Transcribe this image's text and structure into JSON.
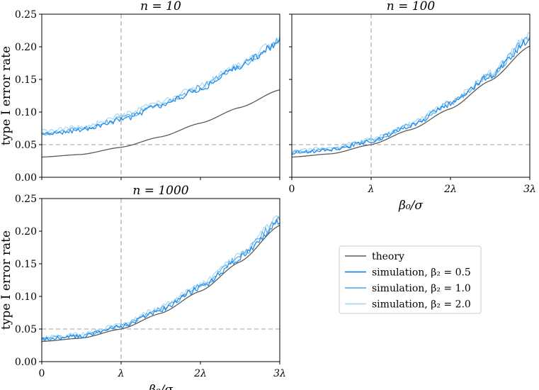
{
  "chart_data": {
    "type": "line",
    "ylabel": "type I error rate",
    "xlabel": "β₀/σ",
    "yticks": [
      "0.00",
      "0.05",
      "0.10",
      "0.15",
      "0.20",
      "0.25"
    ],
    "ylim": [
      0,
      0.25
    ],
    "xlim": [
      0,
      3
    ],
    "xtick_values": [
      0,
      1,
      2,
      3
    ],
    "xticks": [
      "0",
      "λ",
      "2λ",
      "3λ"
    ],
    "reference_lines": {
      "x": 1,
      "y": 0.05
    },
    "colors": {
      "theory": "#5a5a5a",
      "sim_0_5": "#1e88e5",
      "sim_1_0": "#5bb0ee",
      "sim_2_0": "#a9d8f5",
      "reference": "#a0a0a0"
    },
    "legend": {
      "position": "lower-right",
      "entries": [
        "theory",
        "simulation, β₂ = 0.5",
        "simulation, β₂ = 1.0",
        "simulation, β₂ = 2.0"
      ]
    },
    "panels": [
      {
        "title": "n = 10",
        "show_xticklabels": false,
        "show_ylabel": true,
        "series": [
          {
            "key": "theory",
            "name": "theory",
            "x": [
              0,
              0.5,
              1,
              1.5,
              2,
              2.5,
              3
            ],
            "y": [
              0.031,
              0.035,
              0.046,
              0.062,
              0.083,
              0.107,
              0.134
            ]
          },
          {
            "key": "sim_0_5",
            "name": "simulation, β₂ = 0.5",
            "x": [
              0,
              0.5,
              1,
              1.5,
              2,
              2.5,
              3
            ],
            "y": [
              0.065,
              0.073,
              0.088,
              0.11,
              0.136,
              0.171,
              0.207
            ]
          },
          {
            "key": "sim_1_0",
            "name": "simulation, β₂ = 1.0",
            "x": [
              0,
              0.5,
              1,
              1.5,
              2,
              2.5,
              3
            ],
            "y": [
              0.066,
              0.074,
              0.09,
              0.112,
              0.138,
              0.172,
              0.209
            ]
          },
          {
            "key": "sim_2_0",
            "name": "simulation, β₂ = 2.0",
            "x": [
              0,
              0.5,
              1,
              1.5,
              2,
              2.5,
              3
            ],
            "y": [
              0.07,
              0.077,
              0.094,
              0.115,
              0.14,
              0.174,
              0.211
            ]
          }
        ]
      },
      {
        "title": "n = 100",
        "show_xticklabels": true,
        "show_ylabel": false,
        "series": [
          {
            "key": "theory",
            "name": "theory",
            "x": [
              0,
              0.5,
              1,
              1.5,
              2,
              2.5,
              3
            ],
            "y": [
              0.031,
              0.036,
              0.05,
              0.073,
              0.105,
              0.148,
              0.201
            ]
          },
          {
            "key": "sim_0_5",
            "name": "simulation, β₂ = 0.5",
            "x": [
              0,
              0.5,
              1,
              1.5,
              2,
              2.5,
              3
            ],
            "y": [
              0.037,
              0.042,
              0.055,
              0.079,
              0.112,
              0.155,
              0.212
            ]
          },
          {
            "key": "sim_1_0",
            "name": "simulation, β₂ = 1.0",
            "x": [
              0,
              0.5,
              1,
              1.5,
              2,
              2.5,
              3
            ],
            "y": [
              0.038,
              0.043,
              0.056,
              0.08,
              0.114,
              0.157,
              0.215
            ]
          },
          {
            "key": "sim_2_0",
            "name": "simulation, β₂ = 2.0",
            "x": [
              0,
              0.5,
              1,
              1.5,
              2,
              2.5,
              3
            ],
            "y": [
              0.04,
              0.045,
              0.058,
              0.082,
              0.116,
              0.16,
              0.219
            ]
          }
        ]
      },
      {
        "title": "n = 1000",
        "show_xticklabels": true,
        "show_ylabel": true,
        "series": [
          {
            "key": "theory",
            "name": "theory",
            "x": [
              0,
              0.5,
              1,
              1.5,
              2,
              2.5,
              3
            ],
            "y": [
              0.031,
              0.036,
              0.05,
              0.074,
              0.108,
              0.153,
              0.209
            ]
          },
          {
            "key": "sim_0_5",
            "name": "simulation, β₂ = 0.5",
            "x": [
              0,
              0.5,
              1,
              1.5,
              2,
              2.5,
              3
            ],
            "y": [
              0.034,
              0.039,
              0.054,
              0.079,
              0.114,
              0.158,
              0.216
            ]
          },
          {
            "key": "sim_1_0",
            "name": "simulation, β₂ = 1.0",
            "x": [
              0,
              0.5,
              1,
              1.5,
              2,
              2.5,
              3
            ],
            "y": [
              0.035,
              0.04,
              0.055,
              0.08,
              0.116,
              0.161,
              0.219
            ]
          },
          {
            "key": "sim_2_0",
            "name": "simulation, β₂ = 2.0",
            "x": [
              0,
              0.5,
              1,
              1.5,
              2,
              2.5,
              3
            ],
            "y": [
              0.037,
              0.042,
              0.057,
              0.083,
              0.118,
              0.163,
              0.222
            ]
          }
        ]
      }
    ]
  }
}
